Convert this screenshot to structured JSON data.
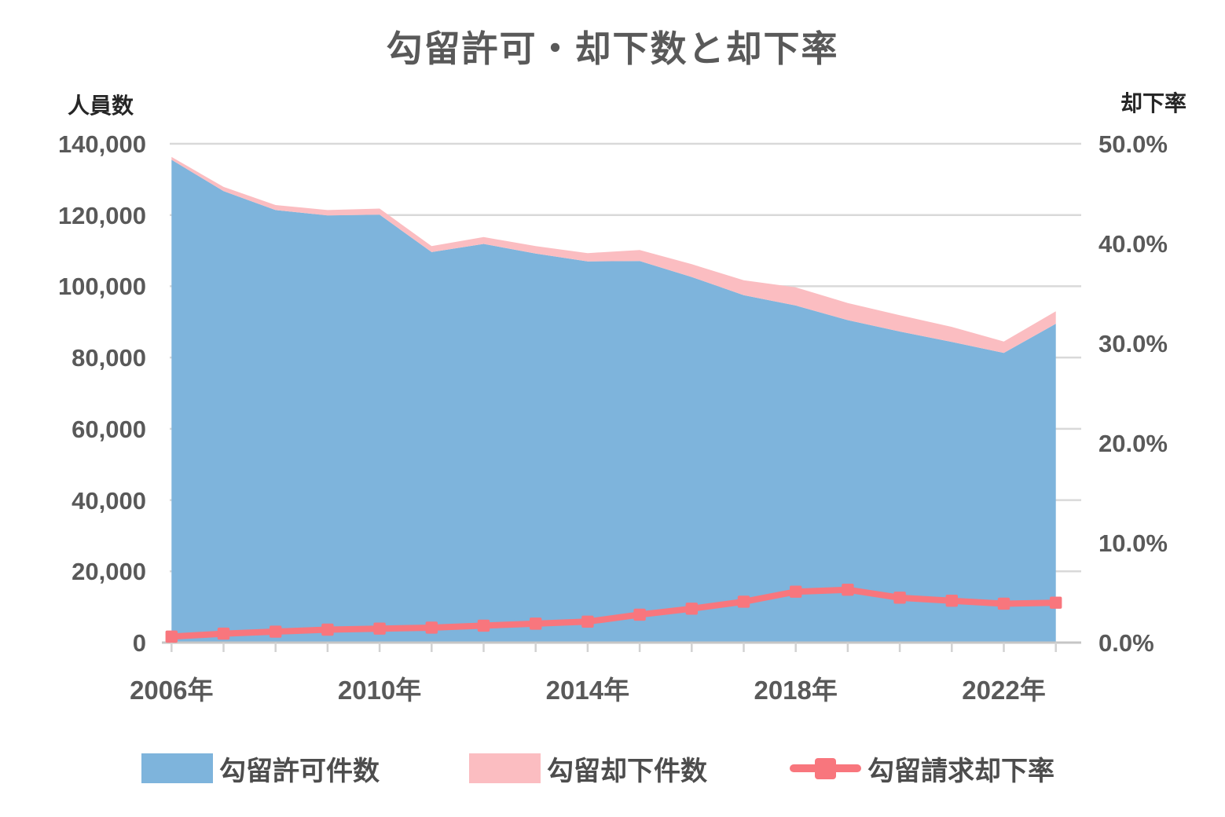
{
  "title": "勾留許可・却下数と却下率",
  "left_axis": {
    "header": "人員数",
    "tick_labels": [
      "140,000",
      "120,000",
      "100,000",
      "80,000",
      "60,000",
      "40,000",
      "20,000",
      "0"
    ],
    "tick_values": [
      140000,
      120000,
      100000,
      80000,
      60000,
      40000,
      20000,
      0
    ],
    "max": 140000,
    "min": 0
  },
  "right_axis": {
    "header": "却下率",
    "tick_labels": [
      "50.0%",
      "40.0%",
      "30.0%",
      "20.0%",
      "10.0%",
      "0.0%"
    ],
    "tick_values": [
      50,
      40,
      30,
      20,
      10,
      0
    ],
    "max": 50,
    "min": 0
  },
  "x_axis": {
    "tick_labels": [
      "2006年",
      "2010年",
      "2014年",
      "2018年",
      "2022年"
    ],
    "tick_years": [
      2006,
      2010,
      2014,
      2018,
      2022
    ]
  },
  "colors": {
    "approved_area": "#7EB4DC",
    "rejected_area": "#FBBDC1",
    "rate_line": "#F8767D",
    "gridline": "#D9D9D9",
    "axis_line": "#C6C6C6",
    "tick_mark": "#D2D2D2"
  },
  "legend": [
    {
      "label": "勾留許可件数",
      "type": "area",
      "color": "#7EB4DC"
    },
    {
      "label": "勾留却下件数",
      "type": "area",
      "color": "#FBBDC1"
    },
    {
      "label": "勾留請求却下率",
      "type": "line",
      "color": "#F8767D"
    }
  ],
  "chart_data": {
    "type": "area",
    "subtype": "stacked-area-with-line",
    "title": "勾留許可・却下数と却下率",
    "categories": [
      2006,
      2007,
      2008,
      2009,
      2010,
      2011,
      2012,
      2013,
      2014,
      2015,
      2016,
      2017,
      2018,
      2019,
      2020,
      2021,
      2022,
      2023
    ],
    "series": [
      {
        "name": "勾留許可件数",
        "type": "area",
        "stack": 1,
        "axis": "left",
        "color": "#7EB4DC",
        "values": [
          135500,
          126700,
          121400,
          119900,
          120100,
          109600,
          111900,
          109200,
          107000,
          107100,
          102600,
          97500,
          94600,
          90500,
          87300,
          84400,
          81300,
          89500
        ]
      },
      {
        "name": "勾留却下件数",
        "type": "area",
        "stack": 1,
        "axis": "left",
        "color": "#FBBDC1",
        "values": [
          800,
          1200,
          1400,
          1500,
          1700,
          1700,
          1900,
          2100,
          2300,
          3100,
          3600,
          4200,
          5100,
          4800,
          4600,
          4200,
          3200,
          3500
        ]
      },
      {
        "name": "勾留請求却下率",
        "type": "line",
        "axis": "right",
        "color": "#F8767D",
        "marker": "square",
        "values": [
          0.6,
          0.9,
          1.1,
          1.3,
          1.4,
          1.5,
          1.7,
          1.9,
          2.1,
          2.8,
          3.4,
          4.1,
          5.1,
          5.3,
          4.5,
          4.2,
          3.9,
          4.0
        ]
      }
    ],
    "ylim_left": [
      0,
      140000
    ],
    "ylim_right": [
      0,
      50
    ],
    "ylabel_left": "人員数",
    "ylabel_right": "却下率",
    "grid": true,
    "legend_position": "bottom"
  }
}
